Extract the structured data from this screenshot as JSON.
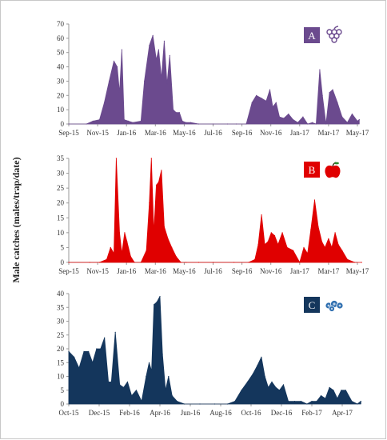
{
  "y_axis_label": "Male catches (males/trap/date)",
  "chart_data": [
    {
      "type": "area",
      "panel_label": "A",
      "icon": "grapes-icon",
      "color": "#6b4a8e",
      "x_ticks": [
        "Sep-15",
        "Nov-15",
        "Jan-16",
        "Mar-16",
        "May-16",
        "Jul-16",
        "Sep-16",
        "Nov-16",
        "Jan-17",
        "Mar-17",
        "May-17"
      ],
      "ylim": [
        0,
        70
      ],
      "y_ticks": [
        0,
        10,
        20,
        30,
        40,
        50,
        60,
        70
      ],
      "x": [
        "2015-09-01",
        "2015-10-08",
        "2015-10-22",
        "2015-11-05",
        "2015-11-15",
        "2015-11-25",
        "2015-12-05",
        "2015-12-12",
        "2015-12-17",
        "2015-12-22",
        "2015-12-27",
        "2016-01-05",
        "2016-01-15",
        "2016-02-01",
        "2016-02-08",
        "2016-02-18",
        "2016-02-25",
        "2016-03-03",
        "2016-03-08",
        "2016-03-14",
        "2016-03-20",
        "2016-03-26",
        "2016-04-01",
        "2016-04-08",
        "2016-04-14",
        "2016-04-21",
        "2016-04-27",
        "2016-05-05",
        "2016-05-15",
        "2016-06-01",
        "2016-07-01",
        "2016-08-01",
        "2016-08-20",
        "2016-09-10",
        "2016-09-22",
        "2016-10-01",
        "2016-10-12",
        "2016-10-22",
        "2016-10-30",
        "2016-11-05",
        "2016-11-12",
        "2016-11-19",
        "2016-11-28",
        "2016-12-08",
        "2016-12-18",
        "2016-12-28",
        "2017-01-08",
        "2017-01-18",
        "2017-01-28",
        "2017-02-05",
        "2017-02-12",
        "2017-02-17",
        "2017-02-24",
        "2017-03-03",
        "2017-03-10",
        "2017-03-20",
        "2017-03-30",
        "2017-04-10",
        "2017-04-20",
        "2017-05-01",
        "2017-05-05"
      ],
      "y": [
        0,
        0,
        2,
        3,
        15,
        30,
        44,
        40,
        22,
        52,
        3,
        2,
        1,
        2,
        30,
        55,
        62,
        45,
        52,
        32,
        58,
        28,
        48,
        10,
        8,
        8,
        2,
        1,
        1,
        0,
        0,
        0,
        0,
        0,
        15,
        20,
        18,
        16,
        24,
        12,
        15,
        5,
        4,
        7,
        3,
        1,
        5,
        0,
        1,
        0,
        38,
        20,
        0,
        22,
        24,
        15,
        5,
        1,
        7,
        2,
        3
      ]
    },
    {
      "type": "area",
      "panel_label": "B",
      "icon": "apple-icon",
      "color": "#e00000",
      "x_ticks": [
        "Sep-15",
        "Nov-15",
        "Jan-16",
        "Mar-16",
        "May-16",
        "Jul-16",
        "Sep-16",
        "Nov-16",
        "Jan-17",
        "Mar-17",
        "May-17"
      ],
      "ylim": [
        0,
        35
      ],
      "y_ticks": [
        0,
        5,
        10,
        15,
        20,
        25,
        30,
        35
      ],
      "x": [
        "2015-09-01",
        "2015-10-15",
        "2015-11-05",
        "2015-11-20",
        "2015-11-28",
        "2015-12-05",
        "2015-12-10",
        "2015-12-17",
        "2015-12-22",
        "2015-12-28",
        "2016-01-02",
        "2016-01-10",
        "2016-01-18",
        "2016-02-01",
        "2016-02-12",
        "2016-02-18",
        "2016-02-22",
        "2016-02-27",
        "2016-03-03",
        "2016-03-08",
        "2016-03-14",
        "2016-03-20",
        "2016-03-28",
        "2016-04-05",
        "2016-04-14",
        "2016-04-24",
        "2016-05-05",
        "2016-06-01",
        "2016-07-01",
        "2016-08-15",
        "2016-09-15",
        "2016-09-28",
        "2016-10-05",
        "2016-10-12",
        "2016-10-19",
        "2016-10-26",
        "2016-11-02",
        "2016-11-09",
        "2016-11-16",
        "2016-11-25",
        "2016-12-05",
        "2016-12-18",
        "2017-01-01",
        "2017-01-10",
        "2017-01-18",
        "2017-01-25",
        "2017-02-02",
        "2017-02-09",
        "2017-02-16",
        "2017-02-22",
        "2017-03-01",
        "2017-03-08",
        "2017-03-15",
        "2017-03-22",
        "2017-03-30",
        "2017-04-10",
        "2017-04-25",
        "2017-05-10"
      ],
      "y": [
        0,
        0,
        0,
        1,
        5,
        3,
        35,
        10,
        3,
        10,
        7,
        2,
        0,
        0,
        4,
        20,
        35,
        10,
        26,
        27,
        31,
        12,
        8,
        5,
        2,
        0,
        0,
        0,
        0,
        0,
        0,
        1,
        6,
        16,
        6,
        7,
        10,
        9,
        6,
        10,
        5,
        4,
        0,
        5,
        3,
        11,
        21,
        12,
        7,
        5,
        8,
        5,
        10,
        6,
        4,
        1,
        0,
        0
      ]
    },
    {
      "type": "area",
      "panel_label": "C",
      "icon": "blueberries-icon",
      "color": "#14365c",
      "x_ticks": [
        "Oct-15",
        "Dec-15",
        "Feb-16",
        "Apr-16",
        "Jun-16",
        "Aug-16",
        "Oct-16",
        "Dec-16",
        "Feb-17",
        "Apr-17"
      ],
      "ylim": [
        0,
        40
      ],
      "y_ticks": [
        0,
        5,
        10,
        15,
        20,
        25,
        30,
        35,
        40
      ],
      "x": [
        "2015-10-01",
        "2015-10-12",
        "2015-10-22",
        "2015-11-01",
        "2015-11-10",
        "2015-11-18",
        "2015-11-26",
        "2015-12-04",
        "2015-12-12",
        "2015-12-20",
        "2015-12-26",
        "2016-01-03",
        "2016-01-12",
        "2016-01-20",
        "2016-01-28",
        "2016-02-05",
        "2016-02-14",
        "2016-02-24",
        "2016-03-04",
        "2016-03-10",
        "2016-03-15",
        "2016-03-20",
        "2016-03-26",
        "2016-04-01",
        "2016-04-06",
        "2016-04-12",
        "2016-04-18",
        "2016-04-25",
        "2016-05-05",
        "2016-05-20",
        "2016-06-20",
        "2016-07-20",
        "2016-08-15",
        "2016-08-30",
        "2016-09-12",
        "2016-09-24",
        "2016-10-05",
        "2016-10-14",
        "2016-10-22",
        "2016-10-29",
        "2016-11-05",
        "2016-11-12",
        "2016-11-20",
        "2016-11-27",
        "2016-12-05",
        "2016-12-15",
        "2016-12-28",
        "2017-01-10",
        "2017-01-22",
        "2017-02-01",
        "2017-02-10",
        "2017-02-18",
        "2017-02-26",
        "2017-03-06",
        "2017-03-14",
        "2017-03-22",
        "2017-03-30",
        "2017-04-08",
        "2017-04-20",
        "2017-05-01",
        "2017-05-08"
      ],
      "y": [
        19,
        17,
        13,
        19,
        19,
        15,
        20,
        20,
        24,
        8,
        8,
        26,
        7,
        6,
        8,
        3,
        5,
        1,
        10,
        15,
        12,
        36,
        37,
        39,
        18,
        5,
        10,
        3,
        1,
        0,
        0,
        0,
        0,
        1,
        5,
        8,
        11,
        14,
        17,
        10,
        6,
        8,
        6,
        5,
        7,
        1,
        1,
        1,
        0,
        1,
        1,
        3,
        2,
        6,
        5,
        2,
        5,
        5,
        1,
        0,
        1
      ]
    }
  ]
}
